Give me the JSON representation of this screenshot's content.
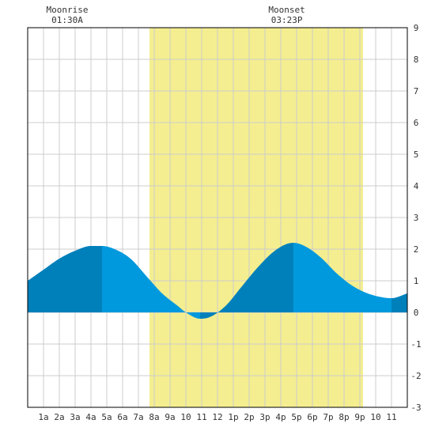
{
  "chart_data": {
    "type": "area",
    "title": "",
    "xlabel": "",
    "ylabel": "",
    "x_range_hours": [
      -1,
      23
    ],
    "ylim": [
      -3,
      9
    ],
    "grid": true,
    "x_tick_labels": [
      "1a",
      "2a",
      "3a",
      "4a",
      "5a",
      "6a",
      "7a",
      "8a",
      "9a",
      "10",
      "11",
      "12",
      "1p",
      "2p",
      "3p",
      "4p",
      "5p",
      "6p",
      "7p",
      "8p",
      "9p",
      "10",
      "11"
    ],
    "y_tick_labels": [
      "-3",
      "-2",
      "-1",
      "0",
      "1",
      "2",
      "3",
      "4",
      "5",
      "6",
      "7",
      "8",
      "9"
    ],
    "daylight_hours": [
      6.7,
      20.2
    ],
    "events": [
      {
        "type": "high",
        "hour": 3.7,
        "height": 2.1
      },
      {
        "type": "low",
        "hour": 9.9,
        "height": -0.2
      },
      {
        "type": "high",
        "hour": 15.8,
        "height": 2.2
      },
      {
        "type": "low",
        "hour": 22.0,
        "height": 0.45
      }
    ],
    "tide_curve": [
      {
        "hour": -1.0,
        "height": 1.0
      },
      {
        "hour": 0.0,
        "height": 1.35
      },
      {
        "hour": 1.0,
        "height": 1.7
      },
      {
        "hour": 2.0,
        "height": 1.95
      },
      {
        "hour": 3.0,
        "height": 2.1
      },
      {
        "hour": 3.7,
        "height": 2.1
      },
      {
        "hour": 4.5,
        "height": 2.0
      },
      {
        "hour": 5.5,
        "height": 1.7
      },
      {
        "hour": 6.5,
        "height": 1.15
      },
      {
        "hour": 7.5,
        "height": 0.6
      },
      {
        "hour": 8.5,
        "height": 0.2
      },
      {
        "hour": 9.0,
        "height": 0.0
      },
      {
        "hour": 9.9,
        "height": -0.2
      },
      {
        "hour": 10.5,
        "height": -0.15
      },
      {
        "hour": 11.5,
        "height": 0.2
      },
      {
        "hour": 12.5,
        "height": 0.8
      },
      {
        "hour": 13.5,
        "height": 1.4
      },
      {
        "hour": 14.5,
        "height": 1.9
      },
      {
        "hour": 15.3,
        "height": 2.15
      },
      {
        "hour": 15.8,
        "height": 2.2
      },
      {
        "hour": 16.5,
        "height": 2.1
      },
      {
        "hour": 17.5,
        "height": 1.75
      },
      {
        "hour": 18.5,
        "height": 1.25
      },
      {
        "hour": 19.5,
        "height": 0.85
      },
      {
        "hour": 20.5,
        "height": 0.6
      },
      {
        "hour": 21.5,
        "height": 0.47
      },
      {
        "hour": 22.0,
        "height": 0.45
      },
      {
        "hour": 23.0,
        "height": 0.6
      }
    ],
    "moon": {
      "rise_label": "Moonrise",
      "rise_time": "01:30A",
      "rise_hour": 1.5,
      "set_label": "Moonset",
      "set_time": "03:23P",
      "set_hour": 15.38
    },
    "colors": {
      "water": "#0099dd",
      "water_dark": "#0080bb",
      "daylight": "#f4ee90",
      "grid": "#cccccc",
      "border": "#000000",
      "text": "#333333"
    }
  }
}
